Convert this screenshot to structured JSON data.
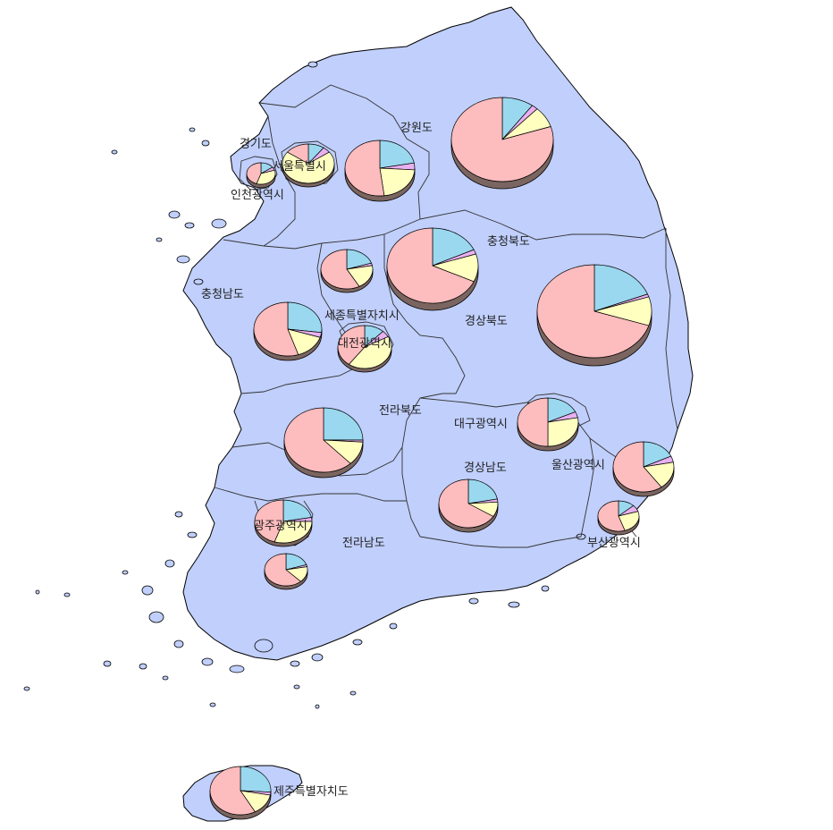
{
  "colors": {
    "land": "#c0cffc",
    "coast": "#000000",
    "border": "#333333",
    "slice_pink": "#fdbcbe",
    "slice_blue": "#9ad8ef",
    "slice_yellow": "#ffffc0",
    "slice_purple": "#e8b0f0",
    "slice_side": "#7a6560"
  },
  "regions": [
    {
      "id": "gangwon",
      "label": "강원도",
      "shares": [
        0.8,
        0.1,
        0.02,
        0.08
      ]
    },
    {
      "id": "gyeonggi",
      "label": "경기도",
      "shares": [
        0.52,
        0.22,
        0.04,
        0.22
      ]
    },
    {
      "id": "seoul",
      "label": "서울특별시",
      "shares": [
        0.15,
        0.1,
        0.05,
        0.7
      ]
    },
    {
      "id": "incheon",
      "label": "인천광역시",
      "shares": [
        0.45,
        0.15,
        0.05,
        0.35
      ]
    },
    {
      "id": "chungbuk",
      "label": "충청북도",
      "shares": [
        0.68,
        0.18,
        0.02,
        0.12
      ]
    },
    {
      "id": "chungnam",
      "label": "충청남도",
      "shares": [
        0.55,
        0.27,
        0.03,
        0.15
      ]
    },
    {
      "id": "sejong",
      "label": "세종특별자치시",
      "shares": [
        0.58,
        0.2,
        0.02,
        0.2
      ]
    },
    {
      "id": "daejeon",
      "label": "대전광역시",
      "shares": [
        0.4,
        0.12,
        0.05,
        0.43
      ]
    },
    {
      "id": "gyeongbuk",
      "label": "경상북도",
      "shares": [
        0.7,
        0.19,
        0.01,
        0.1
      ]
    },
    {
      "id": "jeonbuk",
      "label": "전라북도",
      "shares": [
        0.62,
        0.25,
        0.01,
        0.12
      ]
    },
    {
      "id": "daegu",
      "label": "대구광역시",
      "shares": [
        0.5,
        0.18,
        0.04,
        0.28
      ]
    },
    {
      "id": "gyeongnam",
      "label": "경상남도",
      "shares": [
        0.66,
        0.22,
        0.02,
        0.1
      ]
    },
    {
      "id": "ulsan",
      "label": "울산광역시",
      "shares": [
        0.6,
        0.18,
        0.04,
        0.18
      ]
    },
    {
      "id": "gwangju",
      "label": "광주광역시",
      "shares": [
        0.45,
        0.22,
        0.03,
        0.3
      ]
    },
    {
      "id": "jeonnam",
      "label": "전라남도",
      "shares": [
        0.62,
        0.2,
        0.02,
        0.16
      ]
    },
    {
      "id": "busan",
      "label": "부산광역시",
      "shares": [
        0.55,
        0.13,
        0.07,
        0.25
      ]
    },
    {
      "id": "jeju",
      "label": "제주특별자치도",
      "shares": [
        0.58,
        0.26,
        0.02,
        0.14
      ]
    }
  ]
}
